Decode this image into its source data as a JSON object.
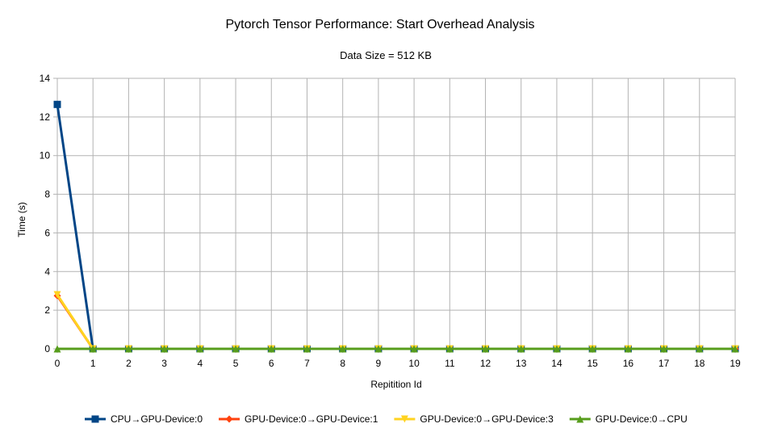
{
  "chart_data": {
    "type": "line",
    "title": "Pytorch Tensor Performance: Start Overhead Analysis",
    "subtitle": "Data Size = 512 KB",
    "xlabel": "Repitition Id",
    "ylabel": "Time (s)",
    "x": [
      0,
      1,
      2,
      3,
      4,
      5,
      6,
      7,
      8,
      9,
      10,
      11,
      12,
      13,
      14,
      15,
      16,
      17,
      18,
      19
    ],
    "ylim": [
      0,
      14
    ],
    "yticks": [
      0,
      2,
      4,
      6,
      8,
      10,
      12,
      14
    ],
    "grid": true,
    "legend_position": "bottom",
    "series": [
      {
        "name": "CPU→GPU-Device:0",
        "color": "#004586",
        "marker": "square",
        "values": [
          12.65,
          0,
          0,
          0,
          0,
          0,
          0,
          0,
          0,
          0,
          0,
          0,
          0,
          0,
          0,
          0,
          0,
          0,
          0,
          0
        ]
      },
      {
        "name": "GPU-Device:0→GPU-Device:1",
        "color": "#ff420e",
        "marker": "diamond",
        "values": [
          2.75,
          0,
          0,
          0,
          0,
          0,
          0,
          0,
          0,
          0,
          0,
          0,
          0,
          0,
          0,
          0,
          0,
          0,
          0,
          0
        ]
      },
      {
        "name": "GPU-Device:0→GPU-Device:3",
        "color": "#ffd320",
        "marker": "triangle-down",
        "values": [
          2.8,
          0,
          0,
          0,
          0,
          0,
          0,
          0,
          0,
          0,
          0,
          0,
          0,
          0,
          0,
          0,
          0,
          0,
          0,
          0
        ]
      },
      {
        "name": "GPU-Device:0→CPU",
        "color": "#579d1c",
        "marker": "triangle-up",
        "values": [
          0,
          0,
          0,
          0,
          0,
          0,
          0,
          0,
          0,
          0,
          0,
          0,
          0,
          0,
          0,
          0,
          0,
          0,
          0,
          0
        ]
      }
    ]
  }
}
